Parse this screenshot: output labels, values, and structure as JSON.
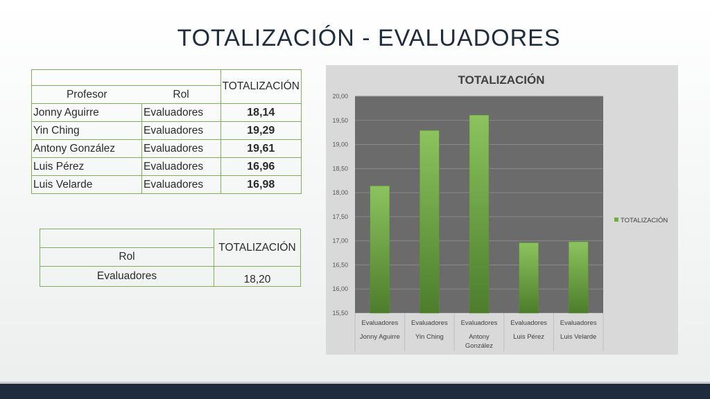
{
  "page": {
    "title": "TOTALIZACIÓN - EVALUADORES"
  },
  "table1": {
    "header_total": "TOTALIZACIÓN",
    "header_profesor": "Profesor",
    "header_rol": "Rol",
    "rows": [
      {
        "profesor": "Jonny Aguirre",
        "rol": "Evaluadores",
        "total": "18,14"
      },
      {
        "profesor": "Yin Ching",
        "rol": "Evaluadores",
        "total": "19,29"
      },
      {
        "profesor": "Antony González",
        "rol": "Evaluadores",
        "total": "19,61"
      },
      {
        "profesor": "Luis Pérez",
        "rol": "Evaluadores",
        "total": "16,96"
      },
      {
        "profesor": "Luis Velarde",
        "rol": "Evaluadores",
        "total": "16,98"
      }
    ]
  },
  "table2": {
    "header_total": "TOTALIZACIÓN",
    "header_rol": "Rol",
    "row_rol": "Evaluadores",
    "row_total": "18,20"
  },
  "colors": {
    "bar": "#6fae44",
    "plot_bg": "#6b6b6b",
    "panel_bg": "#d9d9d9"
  },
  "chart_data": {
    "type": "bar",
    "title": "TOTALIZACIÓN",
    "categories": [
      [
        "Evaluadores",
        "Jonny Aguirre"
      ],
      [
        "Evaluadores",
        "Yin Ching"
      ],
      [
        "Evaluadores",
        "Antony",
        "González"
      ],
      [
        "Evaluadores",
        "Luis Pérez"
      ],
      [
        "Evaluadores",
        "Luis Velarde"
      ]
    ],
    "series": [
      {
        "name": "TOTALIZACIÓN",
        "values": [
          18.14,
          19.29,
          19.61,
          16.96,
          16.98
        ]
      }
    ],
    "ylim": [
      15.5,
      20.0
    ],
    "yticks": [
      "15,50",
      "16,00",
      "16,50",
      "17,00",
      "17,50",
      "18,00",
      "18,50",
      "19,00",
      "19,50",
      "20,00"
    ],
    "grid": true,
    "legend": "right"
  }
}
